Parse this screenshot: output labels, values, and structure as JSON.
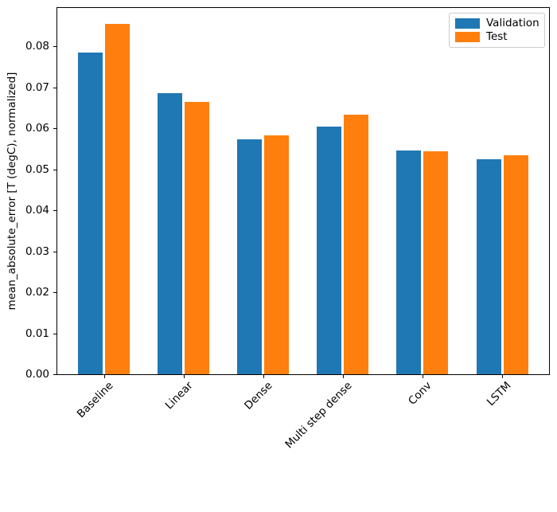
{
  "figure": {
    "background": "#ffffff",
    "axis_color": "#000000"
  },
  "chart_data": {
    "type": "bar",
    "title": "",
    "xlabel": "",
    "ylabel": "mean_absolute_error [T (degC), normalized]",
    "categories": [
      "Baseline",
      "Linear",
      "Dense",
      "Multi step dense",
      "Conv",
      "LSTM"
    ],
    "series": [
      {
        "name": "Validation",
        "color": "#1f77b4",
        "values": [
          0.0785,
          0.0687,
          0.0573,
          0.0605,
          0.0546,
          0.0524
        ]
      },
      {
        "name": "Test",
        "color": "#ff7f0e",
        "values": [
          0.0855,
          0.0664,
          0.0584,
          0.0634,
          0.0544,
          0.0534
        ]
      }
    ],
    "ylim": [
      0,
      0.0894
    ],
    "yticks": [
      "0.00",
      "0.01",
      "0.02",
      "0.03",
      "0.04",
      "0.05",
      "0.06",
      "0.07",
      "0.08"
    ],
    "grid": false,
    "legend_position": "upper right",
    "xtick_rotation": 45,
    "legend_border_color": "#cccccc"
  }
}
